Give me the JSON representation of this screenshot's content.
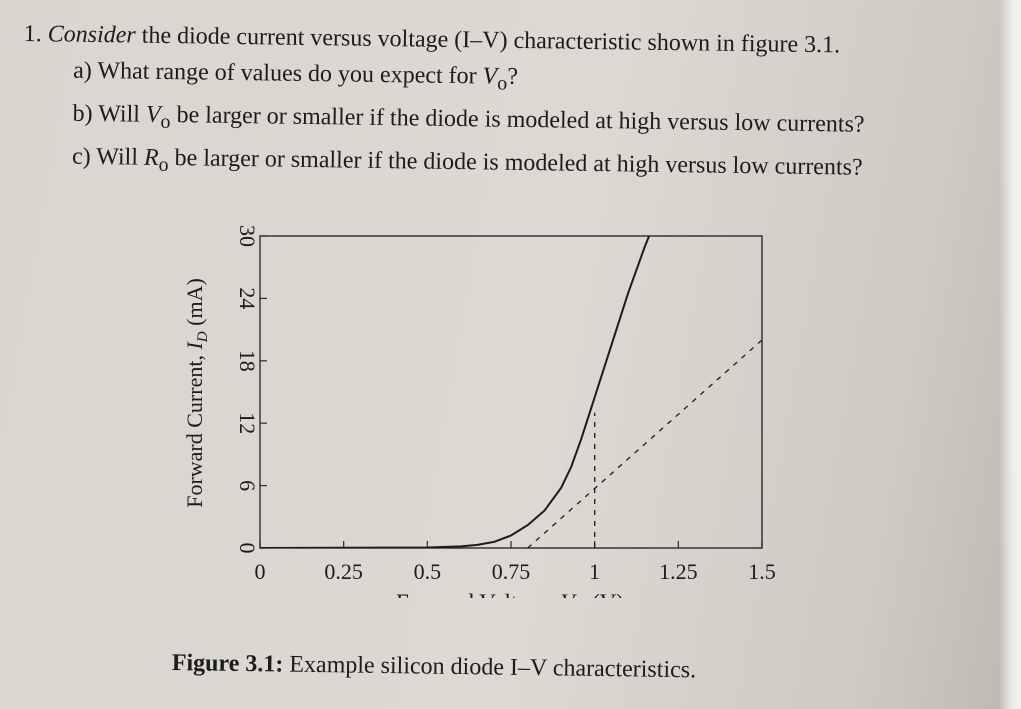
{
  "question": {
    "number": "1.",
    "lead_emph": "Consider",
    "lead_rest": " the diode current versus voltage (I–V) characteristic shown in figure 3.1.",
    "parts": [
      {
        "label": "a)",
        "pre": "What range of values do you expect for ",
        "var": "V",
        "sub": "o",
        "post": "?"
      },
      {
        "label": "b)",
        "pre": "Will ",
        "var": "V",
        "sub": "o",
        "post": " be larger or smaller if the diode is modeled at high versus low currents?"
      },
      {
        "label": "c)",
        "pre": "Will ",
        "var": "R",
        "sub": "o",
        "post": " be larger or smaller if the diode is modeled at high versus low currents?"
      }
    ]
  },
  "chart_data": {
    "type": "line",
    "xlabel_text": "Forward Voltage, ",
    "xlabel_var": "V",
    "xlabel_sub": "D",
    "xlabel_unit": " (V)",
    "ylabel_text": "Forward Current, ",
    "ylabel_var": "I",
    "ylabel_sub": "D",
    "ylabel_unit": " (mA)",
    "xlim": [
      0,
      1.5
    ],
    "ylim": [
      0,
      30
    ],
    "xticks": [
      0,
      0.25,
      0.5,
      0.75,
      1,
      1.25,
      1.5
    ],
    "xtick_labels": [
      "0",
      "0.25",
      "0.5",
      "0.75",
      "1",
      "1.25",
      "1.5"
    ],
    "yticks": [
      0,
      6,
      12,
      18,
      24,
      30
    ],
    "ytick_labels": [
      "0",
      "6",
      "12",
      "18",
      "24",
      "30"
    ],
    "grid": false,
    "series": [
      {
        "style": "solid",
        "x": [
          0,
          0.5,
          0.6,
          0.65,
          0.7,
          0.75,
          0.8,
          0.85,
          0.9,
          0.93,
          0.96,
          1.0,
          1.05,
          1.1,
          1.15,
          1.2
        ],
        "y": [
          0,
          0.05,
          0.15,
          0.3,
          0.6,
          1.2,
          2.2,
          3.6,
          5.8,
          7.8,
          10.5,
          14.5,
          19.5,
          24.5,
          29.0,
          33.0
        ]
      },
      {
        "style": "dashed",
        "x": [
          0.8,
          1.5
        ],
        "y": [
          0,
          20
        ]
      },
      {
        "style": "dashed",
        "x": [
          1.0,
          1.0
        ],
        "y": [
          0,
          13
        ]
      }
    ]
  },
  "figure_caption": {
    "label": "Figure 3.1:",
    "text": " Example silicon diode I–V characteristics."
  }
}
